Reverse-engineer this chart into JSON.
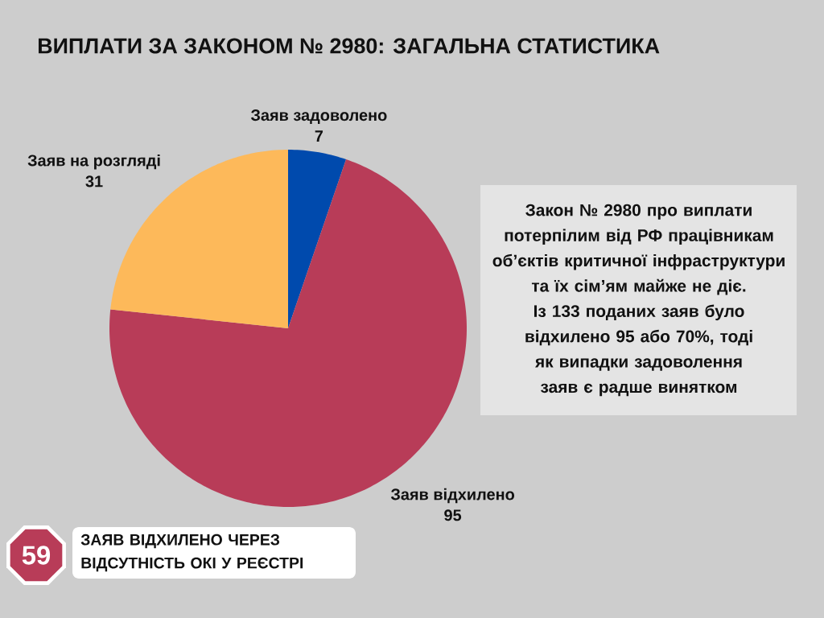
{
  "chart_data": {
    "type": "pie",
    "title": "ВИПЛАТИ ЗА ЗАКОНОМ № 2980: ЗАГАЛЬНА СТАТИСТИКА",
    "categories": [
      "Заяв задоволено",
      "Заяв відхилено",
      "Заяв на розгляді"
    ],
    "values": [
      7,
      95,
      31
    ],
    "colors": [
      "#004aad",
      "#b83c58",
      "#fdb95a"
    ],
    "data_labels": true,
    "annotations": [
      "Закон № 2980 про виплати потерпілим від РФ працівникам об’єктів критичної інфраструктури та їх сім’ям майже не діє. Із 133 поданих заяв було відхилено 95 або 70%, тоді як випадки задоволення заяв є радше винятком",
      "59",
      "ЗАЯВ ВІДХИЛЕНО ЧЕРЕЗ ВІДСУТНІСТЬ ОКІ У РЕЄСТРІ"
    ]
  }
}
